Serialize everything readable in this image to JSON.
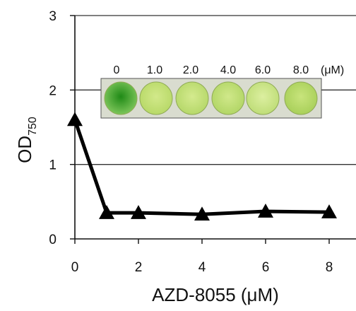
{
  "chart_data": {
    "type": "line",
    "x": [
      0,
      1,
      2,
      4,
      6,
      8
    ],
    "series": [
      {
        "values": [
          1.6,
          0.35,
          0.35,
          0.33,
          0.37,
          0.36
        ],
        "color": "#000000",
        "marker": "triangle"
      }
    ],
    "xticks": [
      "0",
      "2",
      "4",
      "6",
      "8"
    ],
    "yticks": [
      "0",
      "1",
      "2",
      "3"
    ],
    "xlim": [
      0,
      8.5
    ],
    "ylim": [
      0,
      3
    ],
    "grid": "horizontal",
    "xlabel": "AZD-8055 (μM)",
    "ylabel": {
      "main": "OD",
      "sub": "750"
    },
    "inset": {
      "concentrations": [
        "0",
        "1.0",
        "2.0",
        "4.0",
        "6.0",
        "8.0"
      ],
      "unit": "(μM)",
      "wells": [
        {
          "inner": "#1f8a16",
          "outer": "#7cc55a"
        },
        {
          "inner": "#d2e98a",
          "outer": "#b8d968"
        },
        {
          "inner": "#d4ea8e",
          "outer": "#b6d86a"
        },
        {
          "inner": "#d0e88a",
          "outer": "#b2d666"
        },
        {
          "inner": "#dcefa0",
          "outer": "#bfdd78"
        },
        {
          "inner": "#c8e47c",
          "outer": "#a9d05a"
        }
      ]
    }
  }
}
